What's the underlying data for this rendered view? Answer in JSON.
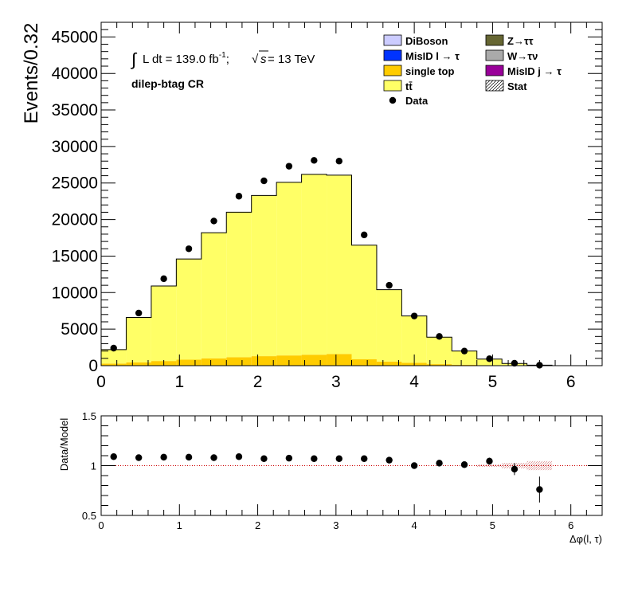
{
  "chart_data": [
    {
      "type": "bar",
      "subtype": "stacked-histogram",
      "ylabel": "Events/0.32",
      "xlim": [
        0,
        6.4
      ],
      "ylim": [
        0,
        47000
      ],
      "x_ticks": [
        "0",
        "1",
        "2",
        "3",
        "4",
        "5",
        "6"
      ],
      "y_ticks": [
        "0",
        "5000",
        "10000",
        "15000",
        "20000",
        "25000",
        "30000",
        "35000",
        "40000",
        "45000"
      ],
      "bin_edges": [
        0,
        0.32,
        0.64,
        0.96,
        1.28,
        1.6,
        1.92,
        2.24,
        2.56,
        2.88,
        3.2,
        3.52,
        3.84,
        4.16,
        4.48,
        4.8,
        5.12,
        5.44,
        5.76,
        6.08,
        6.4
      ],
      "lumi_text": "L dt = 139.0 fb",
      "lumi_sup": "-1",
      "lumi_suffix": ";",
      "energy_label": "s",
      "energy_value": " = 13 TeV",
      "region": "dilep-btag CR",
      "series": [
        {
          "name": "single top",
          "color": "#ffcc00",
          "values": [
            290,
            450,
            640,
            820,
            1000,
            1160,
            1300,
            1400,
            1500,
            1600,
            870,
            560,
            390,
            210,
            120,
            60,
            20,
            10,
            0,
            0
          ]
        },
        {
          "name": "tt̄",
          "color": "#ffff66",
          "values": [
            1910,
            6150,
            10260,
            13780,
            17200,
            19840,
            22000,
            23700,
            24680,
            24470,
            15630,
            9840,
            6410,
            3690,
            1880,
            840,
            280,
            60,
            0,
            0
          ]
        }
      ],
      "data_points": {
        "name": "Data",
        "x": [
          0.16,
          0.48,
          0.8,
          1.12,
          1.44,
          1.76,
          2.08,
          2.4,
          2.72,
          3.04,
          3.36,
          3.68,
          4.0,
          4.32,
          4.64,
          4.96,
          5.28,
          5.6
        ],
        "y": [
          2400,
          7200,
          11900,
          16000,
          19800,
          23200,
          25300,
          27300,
          28100,
          28000,
          17900,
          11000,
          6800,
          4000,
          2000,
          950,
          330,
          60
        ]
      },
      "legend": {
        "placement": "top-right",
        "entries": [
          {
            "label": "DiBoson",
            "color": "#ccccff",
            "style": "box"
          },
          {
            "label": "Z→ττ",
            "color": "#666633",
            "style": "box"
          },
          {
            "label": "MisID l → τ",
            "color": "#0033ff",
            "style": "box"
          },
          {
            "label": "W→τν",
            "color": "#aaaaaa",
            "style": "box"
          },
          {
            "label": "single top",
            "color": "#ffcc00",
            "style": "box"
          },
          {
            "label": "MisID j → τ",
            "color": "#990099",
            "style": "box"
          },
          {
            "label": "tt̄",
            "color": "#ffff66",
            "style": "box"
          },
          {
            "label": "Stat",
            "color": "#000000",
            "style": "hatch"
          },
          {
            "label": "Data",
            "color": "#000000",
            "style": "marker"
          }
        ]
      }
    },
    {
      "type": "scatter",
      "subtype": "ratio",
      "ylabel": "Data/Model",
      "xlabel": "Δφ(l, τ)",
      "xlim": [
        0,
        6.4
      ],
      "ylim": [
        0.5,
        1.5
      ],
      "x_ticks": [
        "0",
        "1",
        "2",
        "3",
        "4",
        "5",
        "6"
      ],
      "y_ticks": [
        "0.5",
        "1",
        "1.5"
      ],
      "x": [
        0.16,
        0.48,
        0.8,
        1.12,
        1.44,
        1.76,
        2.08,
        2.4,
        2.72,
        3.04,
        3.36,
        3.68,
        4.0,
        4.32,
        4.64,
        4.96,
        5.28,
        5.6
      ],
      "y": [
        1.09,
        1.08,
        1.085,
        1.085,
        1.08,
        1.09,
        1.07,
        1.075,
        1.07,
        1.07,
        1.07,
        1.055,
        1.0,
        1.025,
        1.01,
        1.045,
        0.965,
        0.76
      ],
      "yerr": [
        0.01,
        0.005,
        0.005,
        0.005,
        0.005,
        0.005,
        0.005,
        0.005,
        0.005,
        0.005,
        0.005,
        0.005,
        0.01,
        0.015,
        0.02,
        0.035,
        0.06,
        0.13
      ],
      "stat_band": [
        {
          "x0": 4.8,
          "x1": 5.12,
          "half": 0.012
        },
        {
          "x0": 5.12,
          "x1": 5.44,
          "half": 0.028
        },
        {
          "x0": 5.44,
          "x1": 5.76,
          "half": 0.045
        }
      ]
    }
  ]
}
